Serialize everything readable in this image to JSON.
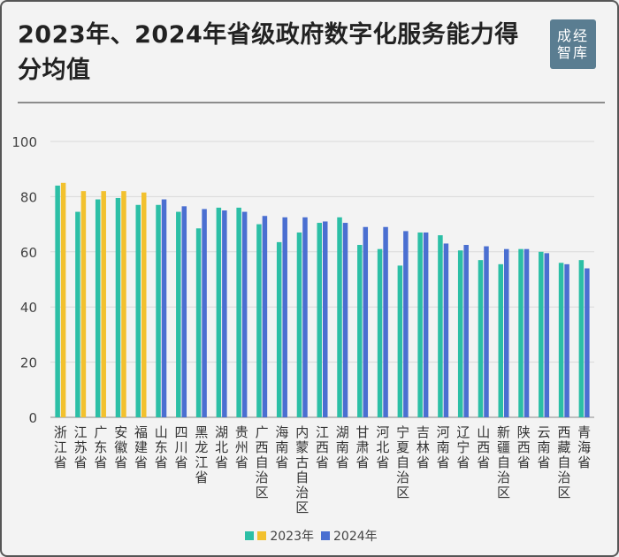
{
  "title": "2023年、2024年省级政府数字化服务能力得分均值",
  "logo_text": "成经智库",
  "colors": {
    "s2023": "#2cbfa6",
    "s2023_highlight": "#f2c12e",
    "s2024": "#4a6fd1",
    "axis": "#888888",
    "grid": "#d9d9d9"
  },
  "chart_data": {
    "type": "bar",
    "title": "2023年、2024年省级政府数字化服务能力得分均值",
    "xlabel": "",
    "ylabel": "",
    "ylim": [
      0,
      100
    ],
    "yticks": [
      0,
      20,
      40,
      60,
      80,
      100
    ],
    "grid": true,
    "legend": "bottom",
    "categories": [
      "浙江省",
      "江苏省",
      "广东省",
      "安徽省",
      "福建省",
      "山东省",
      "四川省",
      "黑龙江省",
      "湖北省",
      "贵州省",
      "广西自治区",
      "海南省",
      "内蒙古自治区",
      "江西省",
      "湖南省",
      "甘肃省",
      "河北省",
      "宁夏自治区",
      "吉林省",
      "河南省",
      "辽宁省",
      "山西省",
      "新疆自治区",
      "陕西省",
      "云南省",
      "西藏自治区",
      "青海省"
    ],
    "series": [
      {
        "name": "2023年",
        "values": [
          84,
          74.5,
          79,
          79.5,
          77,
          77,
          74.5,
          68.5,
          76,
          76,
          70,
          63.5,
          67,
          70.5,
          72.5,
          62.5,
          61,
          55,
          67,
          66,
          60.5,
          57,
          55.5,
          61,
          60,
          56,
          57
        ]
      },
      {
        "name": "2024年",
        "values": [
          85,
          82,
          82,
          82,
          81.5,
          79,
          76.5,
          75.5,
          75,
          74.5,
          73,
          72.5,
          72.5,
          71,
          70.5,
          69,
          69,
          67.5,
          67,
          63,
          62.5,
          62,
          61,
          61,
          59.5,
          55.5,
          54
        ]
      }
    ],
    "highlight_2024_first_n": 5
  }
}
